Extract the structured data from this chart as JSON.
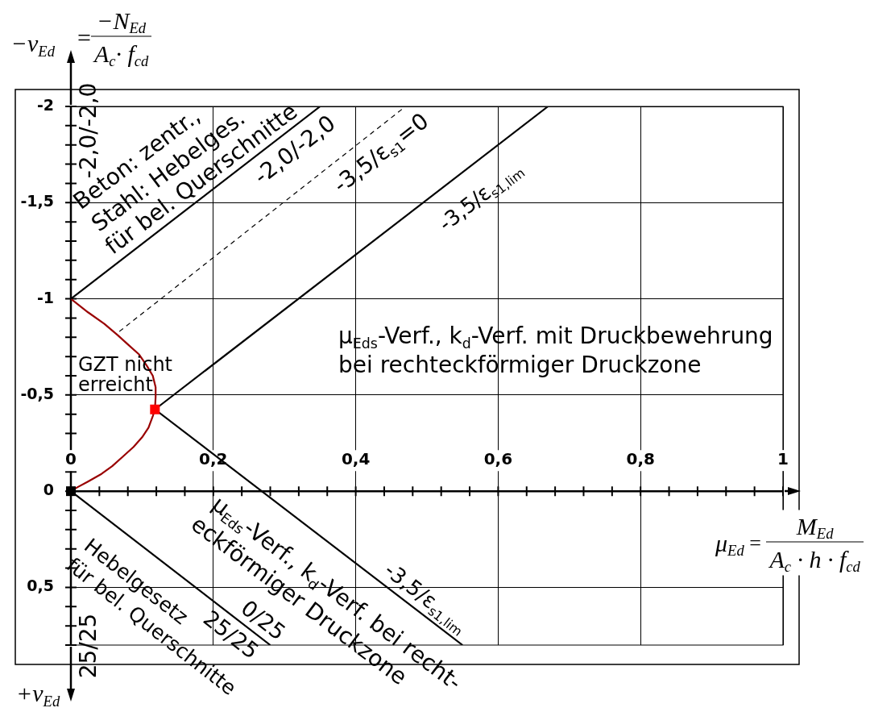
{
  "chart_data": {
    "type": "line",
    "xlabel": "μ$_{Ed}$ = M$_{Ed}$\nA$_{c}$ · h · f$_{cd}$",
    "ylabel": "−ν$_{Ed}$ = −N$_{Ed}$\nA$_{c}$· f$_{cd}$",
    "xlim": [
      0,
      1
    ],
    "ylim": [
      0.8,
      -2
    ],
    "xticks": [
      0,
      {
        "value": 0.04,
        "label": null
      },
      {
        "value": 0.08,
        "label": null
      },
      {
        "value": 0.12,
        "label": null
      },
      {
        "value": 0.16,
        "label": null
      },
      {
        "value": 0.2,
        "label": "0,2"
      },
      {
        "value": 0.24,
        "label": null
      },
      {
        "value": 0.28,
        "label": null
      },
      {
        "value": 0.32,
        "label": null
      },
      {
        "value": 0.36,
        "label": null
      },
      {
        "value": 0.4,
        "label": "0,4"
      },
      {
        "value": 0.44,
        "label": null
      },
      {
        "value": 0.48,
        "label": null
      },
      {
        "value": 0.52,
        "label": null
      },
      {
        "value": 0.56,
        "label": null
      },
      {
        "value": 0.6,
        "label": "0,6"
      },
      {
        "value": 0.64,
        "label": null
      },
      {
        "value": 0.68,
        "label": null
      },
      {
        "value": 0.72,
        "label": null
      },
      {
        "value": 0.76,
        "label": null
      },
      {
        "value": 0.8,
        "label": "0,8"
      },
      {
        "value": 0.84,
        "label": null
      },
      {
        "value": 0.88,
        "label": null
      },
      {
        "value": 0.92,
        "label": null
      },
      {
        "value": 0.96,
        "label": null
      },
      1
    ],
    "yticks": [
      -2,
      {
        "value": -1.9,
        "label": null
      },
      {
        "value": -1.8,
        "label": null
      },
      {
        "value": -1.7,
        "label": null
      },
      {
        "value": -1.6,
        "label": null
      },
      {
        "value": -1.5,
        "label": "-1,5"
      },
      {
        "value": -1.4,
        "label": null
      },
      {
        "value": -1.3,
        "label": null
      },
      {
        "value": -1.2,
        "label": null
      },
      {
        "value": -1.1,
        "label": null
      },
      -1,
      {
        "value": -0.9,
        "label": null
      },
      {
        "value": -0.8,
        "label": null
      },
      {
        "value": -0.7,
        "label": null
      },
      {
        "value": -0.6,
        "label": null
      },
      {
        "value": -0.5,
        "label": "-0,5"
      },
      {
        "value": -0.4,
        "label": null
      },
      {
        "value": -0.3,
        "label": null
      },
      {
        "value": -0.2,
        "label": null
      },
      {
        "value": -0.1,
        "label": null
      },
      0,
      {
        "value": 0.1,
        "label": null
      },
      {
        "value": 0.2,
        "label": null
      },
      {
        "value": 0.3,
        "label": null
      },
      {
        "value": 0.4,
        "label": null
      },
      {
        "value": 0.5,
        "label": "0,5"
      },
      {
        "value": 0.6,
        "label": null
      },
      {
        "value": 0.7,
        "label": null
      },
      {
        "value": 0.8,
        "label": null
      }
    ],
    "grid": true,
    "marker": "none",
    "series": [
      {
        "color": "#000000",
        "x": [
          0,
          0.35
        ],
        "values": [
          -1,
          -2
        ]
      },
      {
        "color": "#000000",
        "line_style": "dashed",
        "x": [
          0.068,
          0.47
        ],
        "values": [
          -0.83,
          -2
        ]
      },
      {
        "color": "#000000",
        "x": [
          0.118,
          0.67
        ],
        "values": [
          -0.425,
          -2
        ]
      },
      {
        "color": "#000000",
        "x": [
          0.118,
          0.55
        ],
        "values": [
          -0.425,
          0.8
        ]
      },
      {
        "color": "#000000",
        "x": [
          0,
          0.28
        ],
        "values": [
          0,
          0.8
        ]
      },
      {
        "color": "#990000",
        "x": [
          0,
          0.024,
          0.047,
          0.066,
          0.081,
          0.096,
          0.107,
          0.115,
          0.119,
          0.119,
          0.118,
          0.115,
          0.109,
          0.1,
          0.088,
          0.073,
          0.058,
          0.043,
          0.024,
          0.009,
          0
        ],
        "values": [
          -1,
          -0.93,
          -0.87,
          -0.81,
          -0.76,
          -0.71,
          -0.65,
          -0.6,
          -0.54,
          -0.49,
          -0.425,
          -0.39,
          -0.33,
          -0.28,
          -0.23,
          -0.18,
          -0.13,
          -0.09,
          -0.05,
          -0.02,
          0
        ]
      },
      {
        "type": "scatter",
        "marker": "square",
        "color": "#ff0000",
        "x": [
          0.118
        ],
        "values": [
          -0.425
        ]
      },
      {
        "type": "scatter",
        "marker": "square",
        "color": "#000000",
        "x": [
          0
        ],
        "values": [
          0
        ]
      }
    ],
    "annotations": [
      "-2,0/-2,0",
      "Beton: zentr.,",
      "Stahl: Hebelges.",
      "für bel. Querschnitte",
      "-2,0/-2,0",
      "-3,5/ε$_{s1}$=0",
      "-3,5/ε$_{s1,lim}$",
      "μ$_{Eds}$-Verf., k$_{d}$-Verf. mit Druckbewehrung",
      "bei rechteckförmiger Druckzone",
      "GZT nicht",
      "erreicht",
      "μ$_{Eds}$-Verf., k$_{d}$-Verf. bei recht-",
      "eckförmiger Druckzone",
      "-3,5/ε$_{s1,lim}$",
      "0/25",
      "25/25",
      "Hebelgesetz",
      "für bel. Querschnitte",
      "25/25",
      "+ν$_{Ed}$"
    ]
  }
}
